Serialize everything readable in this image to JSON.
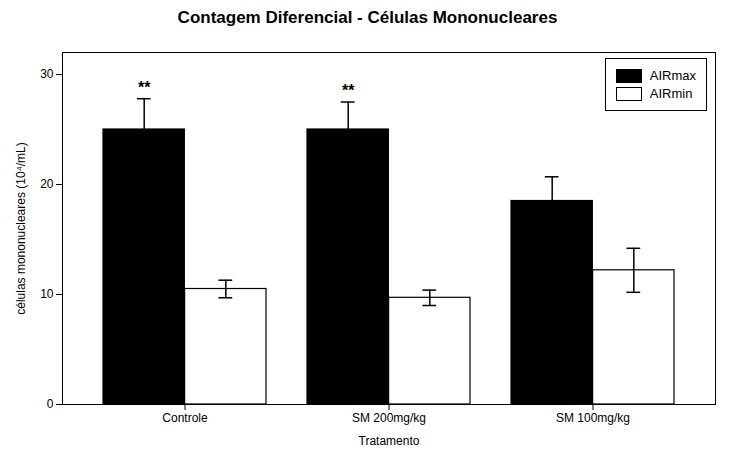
{
  "chart_data": {
    "type": "bar",
    "title": "Contagem Diferencial - Células Mononucleares",
    "xlabel": "Tratamento",
    "ylabel": "células mononucleares (10⁴/mL)",
    "categories": [
      "Controle",
      "SM 200mg/kg",
      "SM 100mg/kg"
    ],
    "series": [
      {
        "name": "AIRmax",
        "color": "#000000",
        "values": [
          25.0,
          25.0,
          18.5
        ],
        "errors": [
          2.8,
          2.5,
          2.2
        ]
      },
      {
        "name": "AIRmin",
        "color": "#ffffff",
        "values": [
          10.5,
          9.7,
          12.2
        ],
        "errors": [
          0.8,
          0.7,
          2.0
        ]
      }
    ],
    "annotations": [
      {
        "text": "**",
        "category": "Controle",
        "series": "AIRmax"
      },
      {
        "text": "**",
        "category": "SM 200mg/kg",
        "series": "AIRmax"
      }
    ],
    "ylim": [
      0,
      32
    ],
    "yticks": [
      0,
      10,
      20,
      30
    ],
    "grid": false,
    "legend": "upper right"
  }
}
